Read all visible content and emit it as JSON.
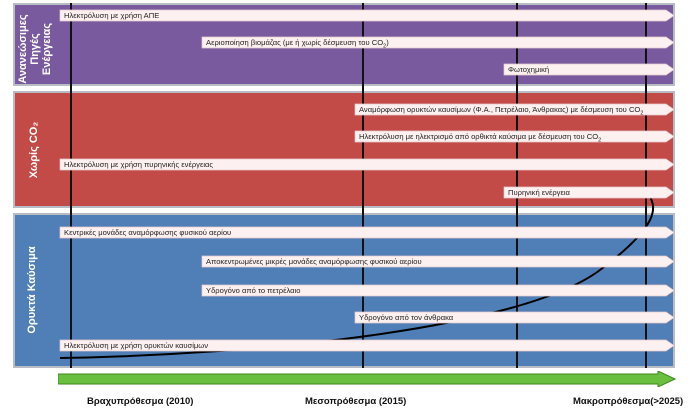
{
  "bands": {
    "renewables": "Ανανεώσιμες\nΠηγές\nΕνέργειας",
    "co2_free": "Χωρίς CO₂",
    "fossil": "Ορυκτά Καύσιμα"
  },
  "routes": {
    "res_electrolysis": "Ηλεκτρόλυση με χρήση ΑΠΕ",
    "biomass": "Αεριοποίηση βιομάζας (με ή χωρίς δέσμευση του CO₂)",
    "photochemical": "Φωτοχημική",
    "fossil_reforming_ccs": "Αναμόρφωση ορυκτών καυσίμων (Φ.Α., Πετρέλαιο, Άνθρακας) με δέσμευση του CO₂",
    "fossil_electricity_ccs": "Ηλεκτρόλυση με ηλεκτρισμό από ορυκτά καύσιμα με δέσμευση του CO₂",
    "nuclear_electrolysis": "Ηλεκτρόλυση με χρήση πυρηνικής ενέργειας",
    "nuclear": "Πυρηνική ενέργεια",
    "central_reforming": "Κεντρικές μονάδες αναμόρφωσης φυσικού αερίου",
    "distributed_reforming": "Αποκεντρωμένες μικρές μονάδες αναμόρφωσης φυσικού αερίου",
    "from_oil": "Υδρογόνο από το πετρέλαιο",
    "from_coal": "Υδρογόνο από τον άνθρακα",
    "fossil_electrolysis": "Ηλεκτρόλυση με χρήση ορυκτών καυσίμων"
  },
  "timeline": {
    "short_term": "Βραχυπρόθεσμα (2010)",
    "medium_term": "Μεσοπρόθεσμα (2015)",
    "long_term": "Μακροπρόθεσμα(>2025)"
  },
  "colors": {
    "renewables_band": "#7a5a9e",
    "co2_free_band": "#c24a47",
    "fossil_band": "#4f7fb6",
    "timeline_arrow": "#6bbf3f"
  }
}
